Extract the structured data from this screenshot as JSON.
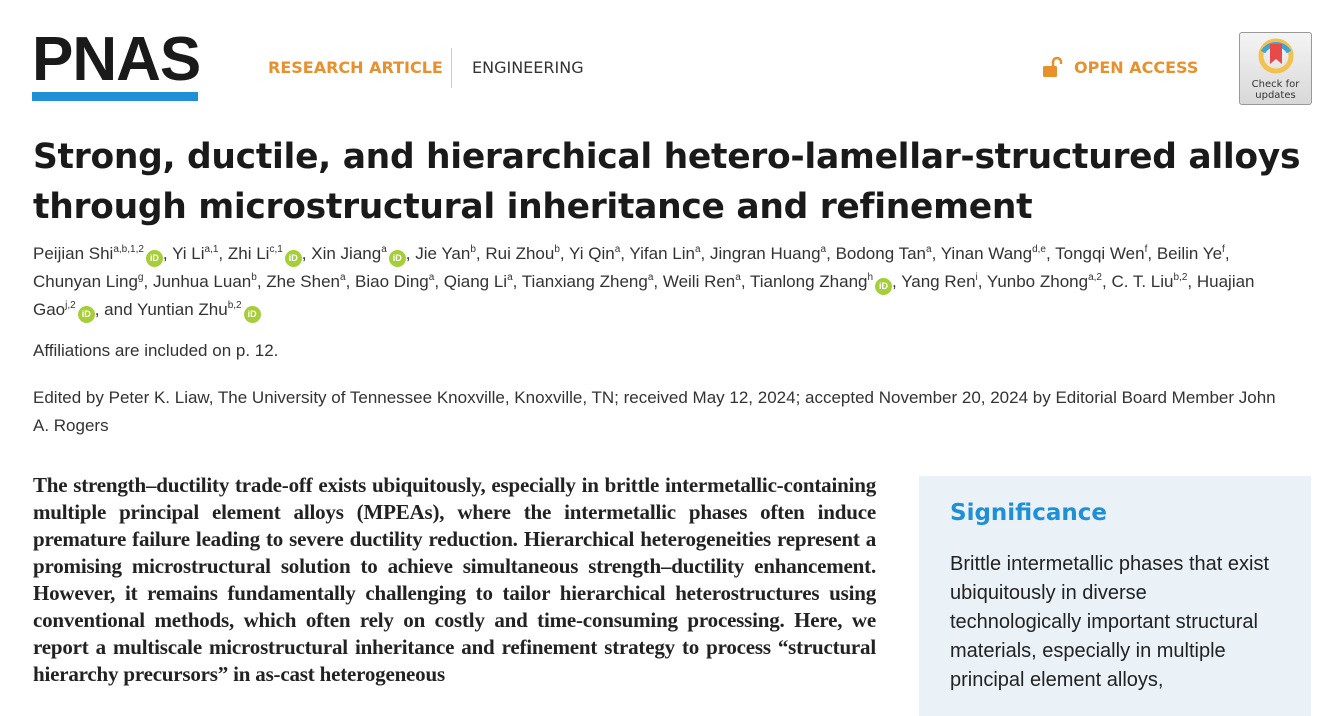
{
  "header": {
    "logo": "PNAS",
    "article_type": "RESEARCH ARTICLE",
    "section": "ENGINEERING",
    "access": "OPEN ACCESS",
    "check_updates": "Check for updates",
    "colors": {
      "accent": "#e8902c",
      "brand": "#1f8fd6",
      "orcid": "#a6ce39"
    }
  },
  "title": "Strong, ductile, and hierarchical hetero-lamellar-structured alloys through microstructural inheritance and refinement",
  "authors": [
    {
      "name": "Peijian Shi",
      "sup": "a,b,1,2",
      "orcid": true
    },
    {
      "name": "Yi Li",
      "sup": "a,1",
      "orcid": false
    },
    {
      "name": "Zhi Li",
      "sup": "c,1",
      "orcid": true
    },
    {
      "name": "Xin Jiang",
      "sup": "a",
      "orcid": true
    },
    {
      "name": "Jie Yan",
      "sup": "b",
      "orcid": false
    },
    {
      "name": "Rui Zhou",
      "sup": "b",
      "orcid": false
    },
    {
      "name": "Yi Qin",
      "sup": "a",
      "orcid": false
    },
    {
      "name": "Yifan Lin",
      "sup": "a",
      "orcid": false
    },
    {
      "name": "Jingran Huang",
      "sup": "a",
      "orcid": false
    },
    {
      "name": "Bodong Tan",
      "sup": "a",
      "orcid": false
    },
    {
      "name": "Yinan Wang",
      "sup": "d,e",
      "orcid": false
    },
    {
      "name": "Tongqi Wen",
      "sup": "f",
      "orcid": false
    },
    {
      "name": "Beilin Ye",
      "sup": "f",
      "orcid": false
    },
    {
      "name": "Chunyan Ling",
      "sup": "g",
      "orcid": false
    },
    {
      "name": "Junhua Luan",
      "sup": "b",
      "orcid": false
    },
    {
      "name": "Zhe Shen",
      "sup": "a",
      "orcid": false
    },
    {
      "name": "Biao Ding",
      "sup": "a",
      "orcid": false
    },
    {
      "name": "Qiang Li",
      "sup": "a",
      "orcid": false
    },
    {
      "name": "Tianxiang Zheng",
      "sup": "a",
      "orcid": false
    },
    {
      "name": "Weili Ren",
      "sup": "a",
      "orcid": false
    },
    {
      "name": "Tianlong Zhang",
      "sup": "h",
      "orcid": true
    },
    {
      "name": "Yang Ren",
      "sup": "i",
      "orcid": false
    },
    {
      "name": "Yunbo Zhong",
      "sup": "a,2",
      "orcid": false
    },
    {
      "name": "C. T. Liu",
      "sup": "b,2",
      "orcid": false
    },
    {
      "name": "Huajian Gao",
      "sup": "j,2",
      "orcid": true
    },
    {
      "name": "Yuntian Zhu",
      "sup": "b,2",
      "orcid": true,
      "prefix": "and "
    }
  ],
  "orcid_label": "iD",
  "affiliations": "Affiliations are included on p. 12.",
  "edited": "Edited by Peter K. Liaw, The University of Tennessee Knoxville, Knoxville, TN; received May 12, 2024; accepted November 20, 2024 by Editorial Board Member John A. Rogers",
  "abstract": "The strength–ductility trade-off exists ubiquitously, especially in brittle intermetallic-containing multiple principal element alloys (MPEAs), where the intermetallic phases often induce premature failure leading to severe ductility reduction. Hierarchical heterogeneities represent a promising microstructural solution to achieve simultaneous strength–ductility enhancement. However, it remains fundamentally challenging to tailor hierarchical heterostructures using conventional methods, which often rely on costly and time-consuming processing. Here, we report a multiscale microstructural inheritance and refinement strategy to process “structural hierarchy precursors” in as-cast heterogeneous",
  "significance": {
    "heading": "Significance",
    "text": "Brittle intermetallic phases that exist ubiquitously in diverse technologically important structural materials, especially in multiple principal element alloys,"
  }
}
